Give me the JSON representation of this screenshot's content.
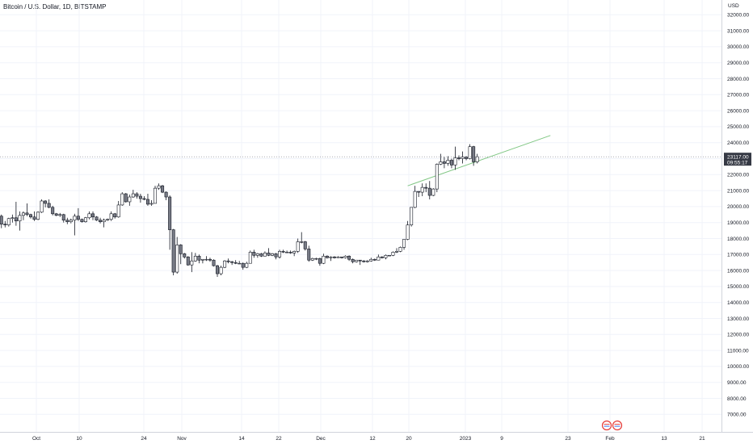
{
  "header": {
    "title": "Bitcoin / U.S. Dollar, 1D, BITSTAMP"
  },
  "chart_data": {
    "type": "candlestick",
    "currency_label": "USD",
    "y_ticks": [
      "32000.00",
      "31000.00",
      "30000.00",
      "29000.00",
      "28000.00",
      "27000.00",
      "26000.00",
      "25000.00",
      "24000.00",
      "23000.00",
      "22000.00",
      "21000.00",
      "20000.00",
      "19000.00",
      "18000.00",
      "17000.00",
      "16000.00",
      "15000.00",
      "14000.00",
      "13000.00",
      "12000.00",
      "11000.00",
      "10000.00",
      "9000.00",
      "8000.00",
      "7000.00"
    ],
    "x_ticks": [
      "Oct",
      "10",
      "24",
      "Nov",
      "14",
      "22",
      "Dec",
      "12",
      "20",
      "2023",
      "9",
      "23",
      "Feb",
      "13",
      "21"
    ],
    "ylim": [
      6500,
      32600
    ],
    "current_price": "23117.00",
    "countdown": "09:55:17",
    "colors": {
      "up": "#ffffff",
      "down": "#787b86",
      "border": "#131722",
      "trendline": "#81c784",
      "grid": "#f0f3fa"
    },
    "trendline": {
      "start": {
        "date": "2023-01-12",
        "price": 21300
      },
      "end": {
        "date": "2023-02-20",
        "price": 24450
      }
    },
    "candles": [
      [
        "2022-09-21",
        19400,
        19600,
        18800,
        19050
      ],
      [
        "2022-09-22",
        19050,
        19500,
        18900,
        19400
      ],
      [
        "2022-09-23",
        19400,
        19500,
        18650,
        18900
      ],
      [
        "2022-09-24",
        18900,
        19100,
        18700,
        18850
      ],
      [
        "2022-09-25",
        18850,
        19300,
        18750,
        19250
      ],
      [
        "2022-09-26",
        19250,
        19500,
        19000,
        19300
      ],
      [
        "2022-09-27",
        19300,
        20300,
        18800,
        19100
      ],
      [
        "2022-09-28",
        19100,
        19700,
        18500,
        19450
      ],
      [
        "2022-09-29",
        19450,
        19700,
        19150,
        19600
      ],
      [
        "2022-09-30",
        19600,
        20200,
        19400,
        19500
      ],
      [
        "2022-10-01",
        19500,
        19550,
        19250,
        19350
      ],
      [
        "2022-10-02",
        19350,
        19700,
        19100,
        19200
      ],
      [
        "2022-10-03",
        19200,
        19700,
        19150,
        19650
      ],
      [
        "2022-10-04",
        19650,
        20450,
        19600,
        20350
      ],
      [
        "2022-10-05",
        20350,
        20400,
        19950,
        20200
      ],
      [
        "2022-10-06",
        20200,
        20450,
        19900,
        19950
      ],
      [
        "2022-10-07",
        19950,
        20050,
        19450,
        19550
      ],
      [
        "2022-10-08",
        19550,
        19600,
        19400,
        19450
      ],
      [
        "2022-10-09",
        19450,
        19600,
        19350,
        19500
      ],
      [
        "2022-10-10",
        19500,
        19550,
        19000,
        19150
      ],
      [
        "2022-10-11",
        19150,
        19300,
        18900,
        19050
      ],
      [
        "2022-10-12",
        19050,
        19250,
        18950,
        19150
      ],
      [
        "2022-10-13",
        19150,
        19550,
        18200,
        19400
      ],
      [
        "2022-10-14",
        19400,
        19900,
        19100,
        19200
      ],
      [
        "2022-10-15",
        19200,
        19250,
        19000,
        19050
      ],
      [
        "2022-10-16",
        19050,
        19350,
        19000,
        19300
      ],
      [
        "2022-10-17",
        19300,
        19700,
        19200,
        19550
      ],
      [
        "2022-10-18",
        19550,
        19700,
        19150,
        19350
      ],
      [
        "2022-10-19",
        19350,
        19400,
        19100,
        19150
      ],
      [
        "2022-10-20",
        19150,
        19300,
        18950,
        19050
      ],
      [
        "2022-10-21",
        19050,
        19250,
        18700,
        19150
      ],
      [
        "2022-10-22",
        19150,
        19250,
        19100,
        19200
      ],
      [
        "2022-10-23",
        19200,
        19700,
        19100,
        19550
      ],
      [
        "2022-10-24",
        19550,
        19600,
        19250,
        19350
      ],
      [
        "2022-10-25",
        19350,
        20350,
        19300,
        20100
      ],
      [
        "2022-10-26",
        20100,
        20900,
        20050,
        20800
      ],
      [
        "2022-10-27",
        20800,
        20850,
        20250,
        20300
      ],
      [
        "2022-10-28",
        20300,
        20750,
        20050,
        20600
      ],
      [
        "2022-10-29",
        20600,
        21050,
        20550,
        20800
      ],
      [
        "2022-10-30",
        20800,
        20900,
        20500,
        20650
      ],
      [
        "2022-10-31",
        20650,
        20800,
        20250,
        20500
      ],
      [
        "2022-11-01",
        20500,
        20650,
        20400,
        20450
      ],
      [
        "2022-11-02",
        20450,
        20800,
        20050,
        20150
      ],
      [
        "2022-11-03",
        20150,
        20400,
        20050,
        20200
      ],
      [
        "2022-11-04",
        20200,
        21300,
        20200,
        21150
      ],
      [
        "2022-11-05",
        21150,
        21450,
        21050,
        21300
      ],
      [
        "2022-11-06",
        21300,
        21350,
        20850,
        20900
      ],
      [
        "2022-11-07",
        20900,
        20950,
        20400,
        20600
      ],
      [
        "2022-11-08",
        20600,
        20700,
        17300,
        18550
      ],
      [
        "2022-11-09",
        18550,
        18600,
        15700,
        15900
      ],
      [
        "2022-11-10",
        15900,
        18100,
        15800,
        17600
      ],
      [
        "2022-11-11",
        17600,
        17650,
        16400,
        17050
      ],
      [
        "2022-11-12",
        17050,
        17100,
        16750,
        16850
      ],
      [
        "2022-11-13",
        16850,
        16900,
        16300,
        16350
      ],
      [
        "2022-11-14",
        16350,
        17150,
        15900,
        16600
      ],
      [
        "2022-11-15",
        16600,
        17100,
        16550,
        16900
      ],
      [
        "2022-11-16",
        16900,
        17000,
        16450,
        16650
      ],
      [
        "2022-11-17",
        16650,
        16700,
        16450,
        16700
      ],
      [
        "2022-11-18",
        16700,
        16900,
        16600,
        16700
      ],
      [
        "2022-11-19",
        16700,
        16800,
        16550,
        16650
      ],
      [
        "2022-11-20",
        16650,
        16700,
        16250,
        16300
      ],
      [
        "2022-11-21",
        16300,
        16350,
        15600,
        15800
      ],
      [
        "2022-11-22",
        15800,
        16300,
        15700,
        16200
      ],
      [
        "2022-11-23",
        16200,
        16650,
        16150,
        16600
      ],
      [
        "2022-11-24",
        16600,
        16750,
        16450,
        16550
      ],
      [
        "2022-11-25",
        16550,
        16600,
        16350,
        16500
      ],
      [
        "2022-11-26",
        16500,
        16650,
        16400,
        16450
      ],
      [
        "2022-11-27",
        16450,
        16600,
        16400,
        16450
      ],
      [
        "2022-11-28",
        16450,
        16500,
        16050,
        16200
      ],
      [
        "2022-11-29",
        16200,
        16550,
        16150,
        16450
      ],
      [
        "2022-11-30",
        16450,
        17250,
        16450,
        17150
      ],
      [
        "2022-12-01",
        17150,
        17300,
        16800,
        16950
      ],
      [
        "2022-12-02",
        16950,
        17100,
        16800,
        17050
      ],
      [
        "2022-12-03",
        17050,
        17100,
        16850,
        16900
      ],
      [
        "2022-12-04",
        16900,
        17200,
        16900,
        17100
      ],
      [
        "2022-12-05",
        17100,
        17400,
        16900,
        16950
      ],
      [
        "2022-12-06",
        16950,
        17100,
        16900,
        17050
      ],
      [
        "2022-12-07",
        17050,
        17100,
        16700,
        16850
      ],
      [
        "2022-12-08",
        16850,
        17300,
        16750,
        17200
      ],
      [
        "2022-12-09",
        17200,
        17300,
        17100,
        17150
      ],
      [
        "2022-12-10",
        17150,
        17250,
        17100,
        17150
      ],
      [
        "2022-12-11",
        17150,
        17250,
        17050,
        17100
      ],
      [
        "2022-12-12",
        17100,
        17250,
        16900,
        17200
      ],
      [
        "2022-12-13",
        17200,
        18000,
        17100,
        17800
      ],
      [
        "2022-12-14",
        17800,
        18400,
        17700,
        17800
      ],
      [
        "2022-12-15",
        17800,
        17850,
        17250,
        17350
      ],
      [
        "2022-12-16",
        17350,
        17550,
        16550,
        16650
      ],
      [
        "2022-12-17",
        16650,
        16800,
        16600,
        16750
      ],
      [
        "2022-12-18",
        16750,
        16800,
        16650,
        16750
      ],
      [
        "2022-12-19",
        16750,
        16800,
        16300,
        16450
      ],
      [
        "2022-12-20",
        16450,
        17050,
        16400,
        16900
      ],
      [
        "2022-12-21",
        16900,
        16950,
        16750,
        16800
      ],
      [
        "2022-12-22",
        16800,
        16900,
        16600,
        16850
      ],
      [
        "2022-12-23",
        16850,
        16900,
        16750,
        16800
      ],
      [
        "2022-12-24",
        16800,
        16900,
        16800,
        16850
      ],
      [
        "2022-12-25",
        16850,
        16850,
        16750,
        16800
      ],
      [
        "2022-12-26",
        16800,
        16950,
        16750,
        16900
      ],
      [
        "2022-12-27",
        16900,
        16950,
        16600,
        16700
      ],
      [
        "2022-12-28",
        16700,
        16750,
        16450,
        16550
      ],
      [
        "2022-12-29",
        16550,
        16650,
        16500,
        16650
      ],
      [
        "2022-12-30",
        16650,
        16650,
        16350,
        16600
      ],
      [
        "2022-12-31",
        16600,
        16650,
        16500,
        16550
      ],
      [
        "2023-01-01",
        16550,
        16650,
        16500,
        16600
      ],
      [
        "2023-01-02",
        16600,
        16800,
        16550,
        16700
      ],
      [
        "2023-01-03",
        16700,
        16750,
        16600,
        16650
      ],
      [
        "2023-01-04",
        16650,
        17000,
        16650,
        16850
      ],
      [
        "2023-01-05",
        16850,
        16900,
        16750,
        16800
      ],
      [
        "2023-01-06",
        16800,
        17000,
        16700,
        16950
      ],
      [
        "2023-01-07",
        16950,
        16950,
        16900,
        16950
      ],
      [
        "2023-01-08",
        16950,
        17200,
        16900,
        17150
      ],
      [
        "2023-01-09",
        17150,
        17400,
        17100,
        17200
      ],
      [
        "2023-01-10",
        17200,
        17500,
        17150,
        17450
      ],
      [
        "2023-01-11",
        17450,
        17950,
        17300,
        17950
      ],
      [
        "2023-01-12",
        17950,
        19100,
        17900,
        18850
      ],
      [
        "2023-01-13",
        18850,
        19950,
        18750,
        19950
      ],
      [
        "2023-01-14",
        19950,
        21300,
        19900,
        20950
      ],
      [
        "2023-01-15",
        20950,
        20950,
        20600,
        20900
      ],
      [
        "2023-01-16",
        20900,
        21450,
        20650,
        21200
      ],
      [
        "2023-01-17",
        21200,
        21450,
        20900,
        21150
      ],
      [
        "2023-01-18",
        21150,
        21600,
        20450,
        20700
      ],
      [
        "2023-01-19",
        20700,
        21150,
        20650,
        21100
      ],
      [
        "2023-01-20",
        21100,
        22700,
        20900,
        22650
      ],
      [
        "2023-01-21",
        22650,
        23300,
        22600,
        22800
      ],
      [
        "2023-01-22",
        22800,
        23100,
        22400,
        22700
      ],
      [
        "2023-01-23",
        22700,
        23150,
        22550,
        22900
      ],
      [
        "2023-01-24",
        22900,
        23000,
        22400,
        22600
      ],
      [
        "2023-01-25",
        22600,
        23750,
        22300,
        23050
      ],
      [
        "2023-01-26",
        23050,
        23200,
        22900,
        23000
      ],
      [
        "2023-01-27",
        23000,
        23450,
        22700,
        23100
      ],
      [
        "2023-01-28",
        23100,
        23150,
        22900,
        23000
      ],
      [
        "2023-01-29",
        23000,
        23900,
        22950,
        23750
      ],
      [
        "2023-01-30",
        23750,
        23800,
        22550,
        22800
      ],
      [
        "2023-01-31",
        22800,
        23300,
        22700,
        23117
      ]
    ]
  }
}
